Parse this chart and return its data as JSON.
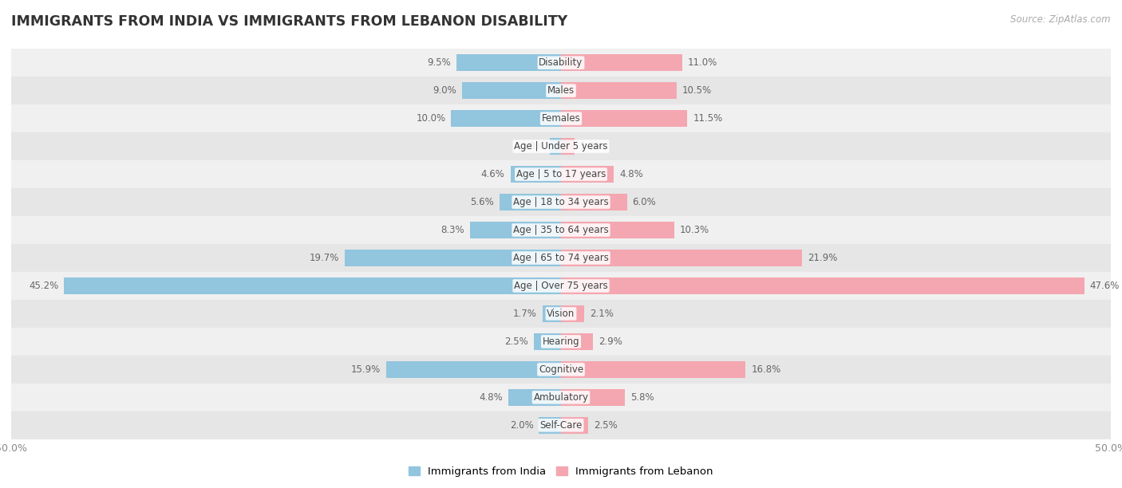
{
  "title": "IMMIGRANTS FROM INDIA VS IMMIGRANTS FROM LEBANON DISABILITY",
  "source": "Source: ZipAtlas.com",
  "categories": [
    "Disability",
    "Males",
    "Females",
    "Age | Under 5 years",
    "Age | 5 to 17 years",
    "Age | 18 to 34 years",
    "Age | 35 to 64 years",
    "Age | 65 to 74 years",
    "Age | Over 75 years",
    "Vision",
    "Hearing",
    "Cognitive",
    "Ambulatory",
    "Self-Care"
  ],
  "india_values": [
    9.5,
    9.0,
    10.0,
    1.0,
    4.6,
    5.6,
    8.3,
    19.7,
    45.2,
    1.7,
    2.5,
    15.9,
    4.8,
    2.0
  ],
  "lebanon_values": [
    11.0,
    10.5,
    11.5,
    1.2,
    4.8,
    6.0,
    10.3,
    21.9,
    47.6,
    2.1,
    2.9,
    16.8,
    5.8,
    2.5
  ],
  "india_color": "#92C5DE",
  "lebanon_color": "#F4A7B0",
  "axis_limit": 50.0,
  "row_colors": [
    "#f0f0f0",
    "#e6e6e6"
  ],
  "label_fontsize": 8.5,
  "title_fontsize": 12.5,
  "legend_fontsize": 9.5,
  "bar_height": 0.6
}
